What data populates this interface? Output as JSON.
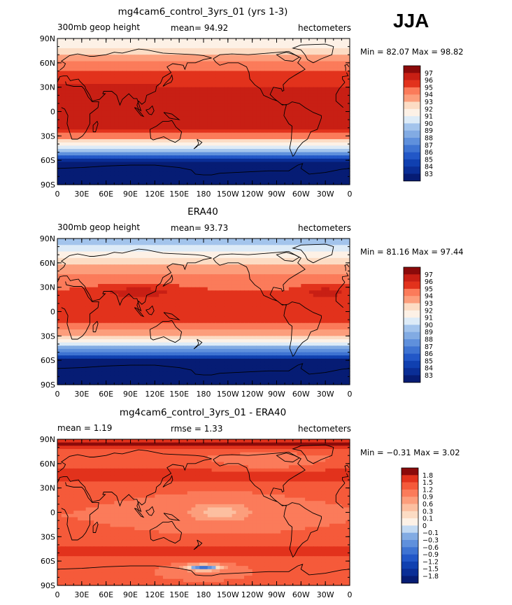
{
  "season": "JJA",
  "colors": {
    "warm": [
      "#fdf1e6",
      "#fcdcc4",
      "#fcbfa0",
      "#fc9e7c",
      "#fb7b5a",
      "#f55a3a",
      "#e2321c",
      "#c81f14",
      "#a81111",
      "#8b0a0a"
    ],
    "cool": [
      "#ddebf7",
      "#c2d9f2",
      "#a3c4ec",
      "#82abe3",
      "#5f90dc",
      "#3e73d2",
      "#2257c7",
      "#1040b0",
      "#0a2e96",
      "#061c74"
    ],
    "land": "#000000"
  },
  "chart_data": [
    {
      "type": "heatmap",
      "title": "mg4cam6_control_3yrs_01 (yrs 1-3)",
      "left_label": "300mb geop height",
      "center_label": "mean=   94.92",
      "right_label": "hectometers",
      "minmax_label": "Min =   82.07  Max =   98.82",
      "min": 82.07,
      "max": 98.82,
      "mean": 94.92,
      "units": "hectometers",
      "field": "model",
      "colorbar": {
        "levels": [
          "97",
          "96",
          "95",
          "94",
          "93",
          "92",
          "91",
          "90",
          "89",
          "88",
          "87",
          "86",
          "85",
          "84",
          "83"
        ]
      },
      "y_ticks": [
        "90N",
        "60N",
        "30N",
        "0",
        "30S",
        "60S",
        "90S"
      ],
      "x_ticks": [
        "0",
        "30E",
        "60E",
        "90E",
        "120E",
        "150E",
        "180",
        "150W",
        "120W",
        "90W",
        "60W",
        "30W",
        "0"
      ]
    },
    {
      "type": "heatmap",
      "title": "ERA40",
      "left_label": "300mb geop height",
      "center_label": "mean=   93.73",
      "right_label": "hectometers",
      "minmax_label": "Min =   81.16  Max =   97.44",
      "min": 81.16,
      "max": 97.44,
      "mean": 93.73,
      "units": "hectometers",
      "field": "obs",
      "colorbar": {
        "levels": [
          "97",
          "96",
          "95",
          "94",
          "93",
          "92",
          "91",
          "90",
          "89",
          "88",
          "87",
          "86",
          "85",
          "84",
          "83"
        ]
      },
      "y_ticks": [
        "90N",
        "60N",
        "30N",
        "0",
        "30S",
        "60S",
        "90S"
      ],
      "x_ticks": [
        "0",
        "30E",
        "60E",
        "90E",
        "120E",
        "150E",
        "180",
        "150W",
        "120W",
        "90W",
        "60W",
        "30W",
        "0"
      ]
    },
    {
      "type": "heatmap",
      "title": "mg4cam6_control_3yrs_01 - ERA40",
      "left_label": "mean =     1.19",
      "center_label": "rmse =     1.33",
      "right_label": "hectometers",
      "minmax_label": "Min =   −0.31  Max =     3.02",
      "min": -0.31,
      "max": 3.02,
      "mean": 1.19,
      "rmse": 1.33,
      "units": "hectometers",
      "field": "diff",
      "colorbar": {
        "levels": [
          "1.8",
          "1.5",
          "1.2",
          "0.9",
          "0.6",
          "0.3",
          "0.1",
          "0",
          "−0.1",
          "−0.3",
          "−0.6",
          "−0.9",
          "−1.2",
          "−1.5",
          "−1.8"
        ]
      },
      "y_ticks": [
        "90N",
        "60N",
        "30N",
        "0",
        "30S",
        "60S",
        "90S"
      ],
      "x_ticks": [
        "0",
        "30E",
        "60E",
        "90E",
        "120E",
        "150E",
        "180",
        "150W",
        "120W",
        "90W",
        "60W",
        "30W",
        "0"
      ]
    }
  ]
}
